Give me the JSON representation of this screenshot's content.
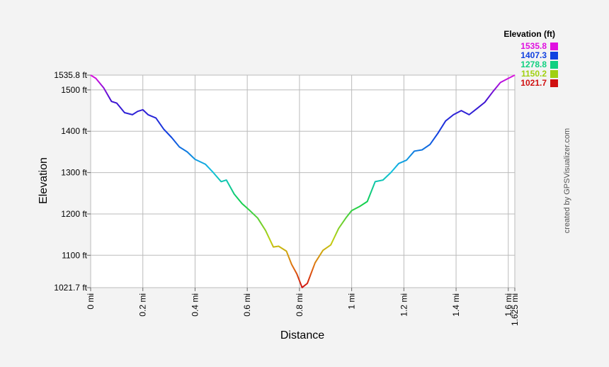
{
  "chart_data": {
    "type": "line",
    "xlabel": "Distance",
    "ylabel": "Elevation",
    "x_unit": "mi",
    "y_unit": "ft",
    "xlim": [
      0,
      1.625
    ],
    "ylim": [
      1021.7,
      1535.8
    ],
    "x_ticks": [
      {
        "value": 0,
        "label": "0 mi"
      },
      {
        "value": 0.2,
        "label": "0.2 mi"
      },
      {
        "value": 0.4,
        "label": "0.4 mi"
      },
      {
        "value": 0.6,
        "label": "0.6 mi"
      },
      {
        "value": 0.8,
        "label": "0.8 mi"
      },
      {
        "value": 1.0,
        "label": "1 mi"
      },
      {
        "value": 1.2,
        "label": "1.2 mi"
      },
      {
        "value": 1.4,
        "label": "1.4 mi"
      },
      {
        "value": 1.6,
        "label": "1.6 mi"
      },
      {
        "value": 1.625,
        "label": "1.625 mi"
      }
    ],
    "y_ticks": [
      {
        "value": 1021.7,
        "label": "1021.7 ft"
      },
      {
        "value": 1100,
        "label": "1100 ft"
      },
      {
        "value": 1200,
        "label": "1200 ft"
      },
      {
        "value": 1300,
        "label": "1300 ft"
      },
      {
        "value": 1400,
        "label": "1400 ft"
      },
      {
        "value": 1500,
        "label": "1500 ft"
      },
      {
        "value": 1535.8,
        "label": "1535.8 ft"
      }
    ],
    "grid": true,
    "legend": {
      "title": "Elevation (ft)",
      "placement": "top-right",
      "entries": [
        {
          "label": "1535.8",
          "color": "#e010e0"
        },
        {
          "label": "1407.3",
          "color": "#1040e0"
        },
        {
          "label": "1278.8",
          "color": "#10d080"
        },
        {
          "label": "1150.2",
          "color": "#a0d010"
        },
        {
          "label": "1021.7",
          "color": "#d01010"
        }
      ]
    },
    "series": [
      {
        "x": [
          0,
          0.02,
          0.05,
          0.08,
          0.1,
          0.13,
          0.16,
          0.18,
          0.2,
          0.22,
          0.25,
          0.28,
          0.31,
          0.34,
          0.37,
          0.4,
          0.44,
          0.47,
          0.5,
          0.52,
          0.55,
          0.58,
          0.61,
          0.64,
          0.67,
          0.7,
          0.72,
          0.75,
          0.77,
          0.79,
          0.81,
          0.83,
          0.86,
          0.89,
          0.92,
          0.95,
          0.98,
          1.0,
          1.03,
          1.06,
          1.09,
          1.12,
          1.15,
          1.18,
          1.21,
          1.24,
          1.27,
          1.3,
          1.33,
          1.36,
          1.39,
          1.42,
          1.45,
          1.48,
          1.51,
          1.54,
          1.57,
          1.6,
          1.625
        ],
        "y": [
          1535.8,
          1528,
          1505,
          1472,
          1468,
          1445,
          1440,
          1448,
          1452,
          1440,
          1432,
          1405,
          1385,
          1362,
          1350,
          1332,
          1320,
          1300,
          1278,
          1282,
          1248,
          1225,
          1208,
          1190,
          1160,
          1120,
          1122,
          1110,
          1078,
          1055,
          1022,
          1032,
          1082,
          1112,
          1125,
          1165,
          1192,
          1208,
          1218,
          1230,
          1278,
          1282,
          1300,
          1322,
          1330,
          1352,
          1355,
          1368,
          1395,
          1425,
          1440,
          1450,
          1440,
          1455,
          1470,
          1495,
          1518,
          1528,
          1535.8
        ]
      }
    ]
  },
  "credit": "created by GPSVisualizer.com"
}
